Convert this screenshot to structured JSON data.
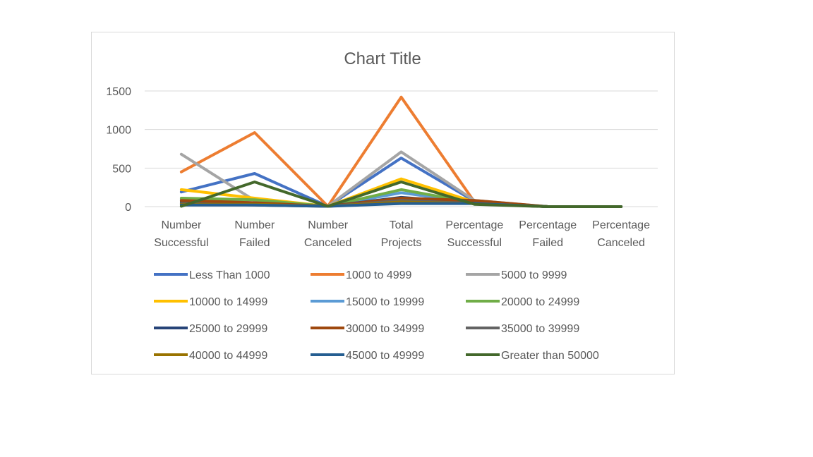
{
  "chart_data": {
    "type": "line",
    "title": "Chart Title",
    "xlabel": "",
    "ylabel": "",
    "ylim": [
      0,
      1500
    ],
    "yticks": [
      0,
      500,
      1000,
      1500
    ],
    "grid": true,
    "legend_position": "bottom",
    "categories": [
      [
        "Number",
        "Successful"
      ],
      [
        "Number",
        "Failed"
      ],
      [
        "Number",
        "Canceled"
      ],
      [
        "Total",
        "Projects"
      ],
      [
        "Percentage",
        "Successful"
      ],
      [
        "Percentage",
        "Failed"
      ],
      [
        "Percentage",
        "Canceled"
      ]
    ],
    "series": [
      {
        "name": "Less Than 1000",
        "color": "#4472c4",
        "values": [
          190,
          430,
          5,
          630,
          70,
          0,
          0
        ]
      },
      {
        "name": "1000 to 4999",
        "color": "#ed7d31",
        "values": [
          450,
          960,
          5,
          1420,
          60,
          0,
          0
        ]
      },
      {
        "name": "5000 to 9999",
        "color": "#a5a5a5",
        "values": [
          680,
          80,
          5,
          710,
          80,
          0,
          0
        ]
      },
      {
        "name": "10000 to 14999",
        "color": "#ffc000",
        "values": [
          220,
          110,
          5,
          360,
          60,
          0,
          0
        ]
      },
      {
        "name": "15000 to 19999",
        "color": "#5b9bd5",
        "values": [
          100,
          50,
          5,
          180,
          50,
          0,
          0
        ]
      },
      {
        "name": "20000 to 24999",
        "color": "#70ad47",
        "values": [
          110,
          90,
          5,
          220,
          50,
          0,
          0
        ]
      },
      {
        "name": "25000 to 29999",
        "color": "#264478",
        "values": [
          60,
          40,
          5,
          120,
          50,
          0,
          0
        ]
      },
      {
        "name": "30000 to 34999",
        "color": "#9e480e",
        "values": [
          80,
          50,
          5,
          110,
          80,
          0,
          0
        ]
      },
      {
        "name": "35000 to 39999",
        "color": "#636363",
        "values": [
          40,
          20,
          5,
          80,
          40,
          0,
          0
        ]
      },
      {
        "name": "40000 to 44999",
        "color": "#997300",
        "values": [
          30,
          30,
          5,
          60,
          40,
          0,
          0
        ]
      },
      {
        "name": "45000 to 49999",
        "color": "#255e91",
        "values": [
          20,
          20,
          5,
          40,
          40,
          0,
          0
        ]
      },
      {
        "name": "Greater than 50000",
        "color": "#43682b",
        "values": [
          5,
          320,
          5,
          320,
          30,
          0,
          0
        ]
      }
    ]
  }
}
